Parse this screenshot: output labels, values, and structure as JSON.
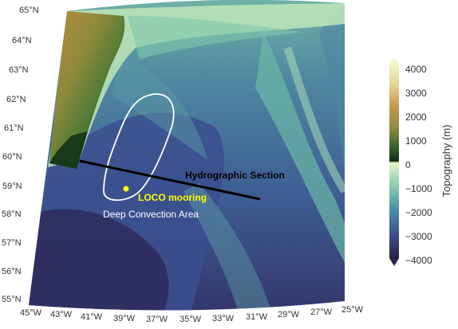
{
  "map": {
    "lat_ticks": [
      "65°N",
      "64°N",
      "63°N",
      "62°N",
      "61°N",
      "60°N",
      "59°N",
      "58°N",
      "57°N",
      "56°N",
      "55°N"
    ],
    "lon_ticks": [
      "45°W",
      "43°W",
      "41°W",
      "39°W",
      "37°W",
      "35°W",
      "33°W",
      "31°W",
      "29°W",
      "27°W",
      "25°W"
    ],
    "annotations": {
      "section": "Hydrographic Section",
      "mooring": "LOCO mooring",
      "convection": "Deep Convection Area"
    },
    "colors": {
      "section_line": "#000000",
      "mooring_marker": "#ffff00",
      "convection_outline": "#ffffff",
      "deep_ocean": "#2c2a5a",
      "shelf": "#c8edc0",
      "land_high": "#c9a24a",
      "land_low": "#1f4a20"
    }
  },
  "colorbar": {
    "label": "Topography (m)",
    "ticks": [
      "4000",
      "3000",
      "2000",
      "1000",
      "0",
      "−1000",
      "−2000",
      "−3000",
      "−4000"
    ]
  }
}
